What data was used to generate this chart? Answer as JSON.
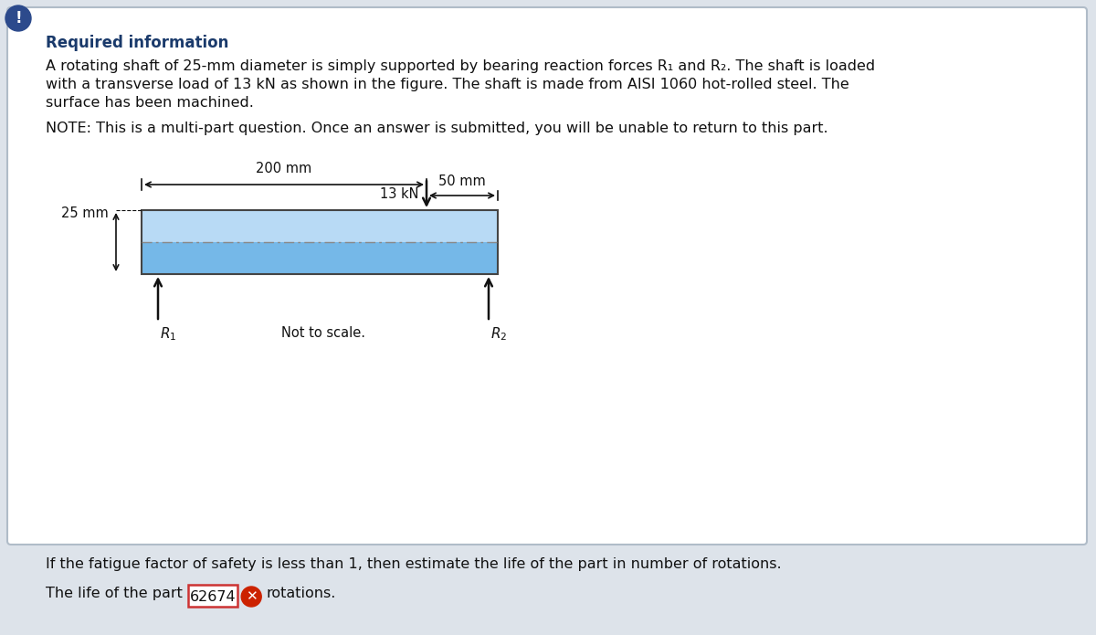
{
  "bg_color": "#e8edf2",
  "card_color": "#ffffff",
  "card_border_color": "#b0bcc8",
  "icon_color": "#2c4a8c",
  "icon_text": "!",
  "required_info_title": "Required information",
  "required_info_title_color": "#1a3a6b",
  "shaft_color_top": "#b8daf5",
  "shaft_color_bottom": "#75b8e8",
  "shaft_border_color": "#444444",
  "centerline_color": "#888888",
  "dim_color": "#111111",
  "arrow_color": "#111111",
  "label_25mm": "25 mm",
  "label_200mm": "200 mm",
  "label_13kN": "13 kN",
  "label_50mm": "50 mm",
  "label_not_to_scale": "Not to scale.",
  "question_text": "If the fatigue factor of safety is less than 1, then estimate the life of the part in number of rotations.",
  "answer_prefix": "The life of the part is ",
  "answer_value": "62674",
  "answer_suffix": "rotations.",
  "answer_box_color": "#cc3333",
  "answer_box_bg": "#ffffff",
  "x_icon_color": "#cc2200",
  "text_color": "#111111",
  "background_outer": "#dde3ea"
}
